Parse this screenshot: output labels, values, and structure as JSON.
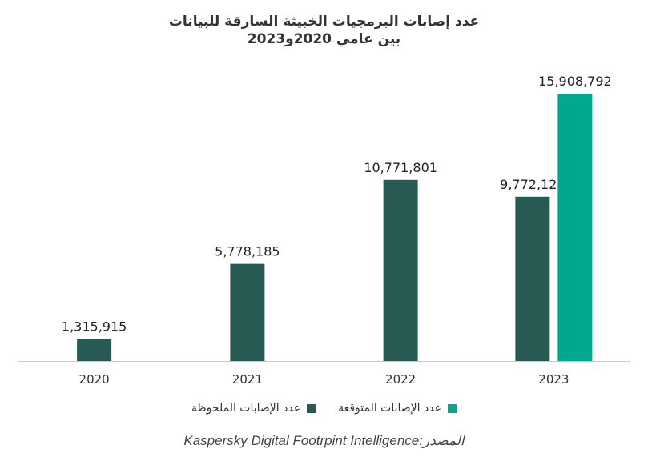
{
  "chart_data": {
    "type": "bar",
    "title_line1": "عدد إصابات البرمجيات الخبيثة السارقة للبيانات",
    "title_line2": "بين عامي  2020و2023",
    "categories": [
      "2020",
      "2021",
      "2022",
      "2023"
    ],
    "series": [
      {
        "name": "عدد الإصابات الملحوظة",
        "color": "#275a53",
        "values": [
          1315915,
          5778185,
          10771801,
          9772121
        ],
        "labels": [
          "1,315,915",
          "5,778,185",
          "10,771,801",
          "9,772,121"
        ]
      },
      {
        "name": "عدد الإصابات المتوقعة",
        "color": "#00a88e",
        "values": [
          null,
          null,
          null,
          15908792
        ],
        "labels": [
          "",
          "",
          "",
          "15,908,792"
        ]
      }
    ],
    "ylim": [
      0,
      18000000
    ],
    "grid": false,
    "legend_position": "bottom",
    "source": "Kaspersky Digital Footrpint Intelligence:المصدر"
  }
}
